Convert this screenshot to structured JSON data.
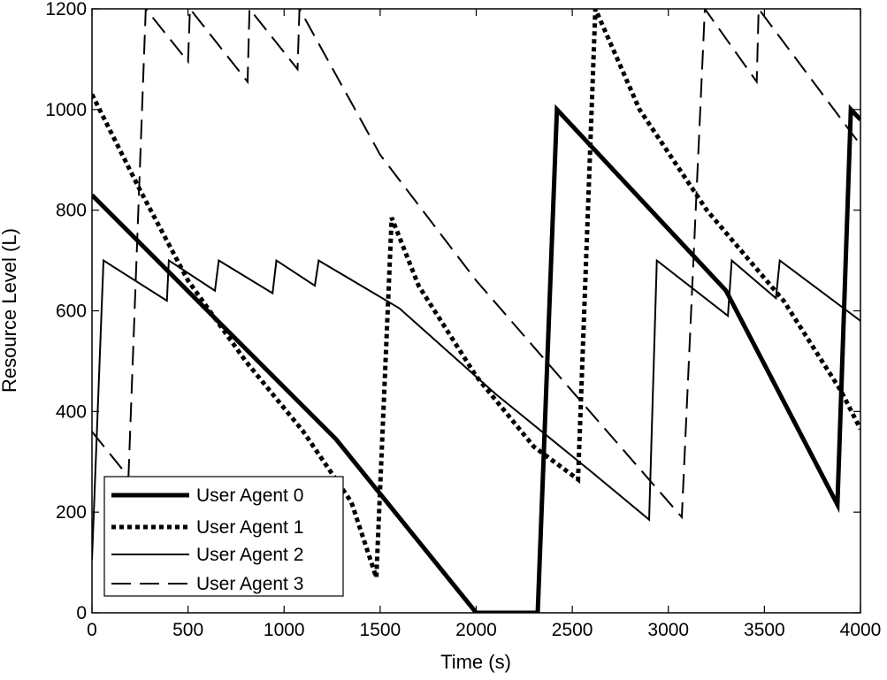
{
  "chart_data": {
    "type": "line",
    "title": "",
    "xlabel": "Time (s)",
    "ylabel": "Resource Level (L)",
    "xlim": [
      0,
      4000
    ],
    "ylim": [
      0,
      1200
    ],
    "xticks": [
      0,
      500,
      1000,
      1500,
      2000,
      2500,
      3000,
      3500,
      4000
    ],
    "yticks": [
      0,
      200,
      400,
      600,
      800,
      1000,
      1200
    ],
    "grid": false,
    "legend_position": "bottom-left",
    "series": [
      {
        "name": "User Agent 0",
        "style": "thick-solid",
        "color": "#000000",
        "x": [
          0,
          1270,
          2000,
          2320,
          2420,
          3300,
          3880,
          3950,
          4000
        ],
        "y": [
          830,
          345,
          0,
          0,
          1000,
          640,
          215,
          1000,
          980
        ]
      },
      {
        "name": "User Agent 1",
        "style": "dotted",
        "color": "#000000",
        "x": [
          0,
          250,
          500,
          800,
          1100,
          1350,
          1480,
          1560,
          1700,
          2000,
          2300,
          2530,
          2620,
          2850,
          3200,
          3600,
          3900,
          4000
        ],
        "y": [
          1030,
          840,
          660,
          500,
          360,
          220,
          70,
          785,
          650,
          470,
          330,
          265,
          1200,
          1000,
          800,
          620,
          440,
          365
        ]
      },
      {
        "name": "User Agent 2",
        "style": "thin-solid",
        "color": "#000000",
        "x": [
          0,
          60,
          390,
          400,
          640,
          660,
          940,
          960,
          1160,
          1180,
          1600,
          2100,
          2600,
          2900,
          2940,
          3310,
          3330,
          3560,
          3580,
          4000
        ],
        "y": [
          105,
          700,
          620,
          700,
          640,
          700,
          635,
          700,
          650,
          700,
          605,
          435,
          280,
          185,
          700,
          590,
          700,
          625,
          700,
          580
        ]
      },
      {
        "name": "User Agent 3",
        "style": "dashed",
        "color": "#000000",
        "x": [
          0,
          190,
          280,
          500,
          510,
          810,
          820,
          1070,
          1080,
          1500,
          2000,
          2500,
          3070,
          3190,
          3460,
          3470,
          3960,
          4000
        ],
        "y": [
          360,
          270,
          1200,
          1095,
          1200,
          1055,
          1200,
          1080,
          1200,
          910,
          660,
          440,
          190,
          1200,
          1055,
          1200,
          950,
          930
        ]
      }
    ]
  }
}
